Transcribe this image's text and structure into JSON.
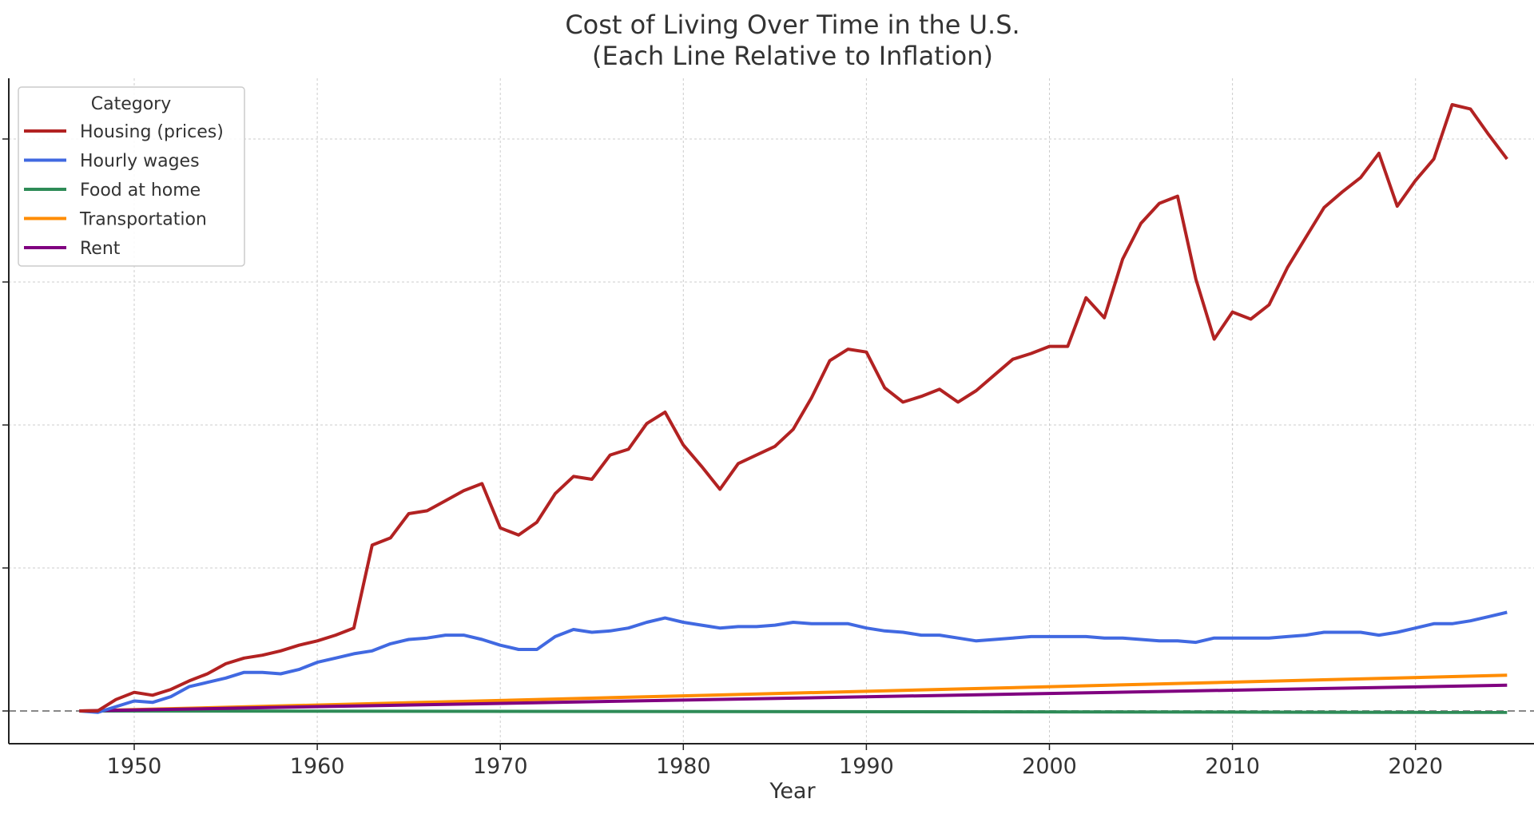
{
  "chart_data": {
    "type": "line",
    "title": "Cost of Living Over Time in the U.S.",
    "subtitle": "(Each Line Relative to Inflation)",
    "xlabel": "Year",
    "ylabel": "",
    "xlim": [
      1943,
      2026
    ],
    "ylim": [
      -0.23,
      4.35
    ],
    "xticks": [
      1950,
      1960,
      1970,
      1980,
      1990,
      2000,
      2010,
      2020
    ],
    "xtick_labels": [
      "1950",
      "1960",
      "1970",
      "1980",
      "1990",
      "2000",
      "2010",
      "2020"
    ],
    "yticks": [
      0,
      1,
      2,
      3,
      4
    ],
    "ytick_labels_visible": false,
    "grid": true,
    "baseline": 0,
    "legend": {
      "title": "Category",
      "placement": "top-left"
    },
    "series": [
      {
        "name": "Housing (prices)",
        "color": "#b22222",
        "x": [
          1947,
          1948,
          1949,
          1950,
          1951,
          1952,
          1953,
          1954,
          1955,
          1956,
          1957,
          1958,
          1959,
          1960,
          1961,
          1962,
          1963,
          1964,
          1965,
          1966,
          1967,
          1968,
          1969,
          1970,
          1971,
          1972,
          1973,
          1974,
          1975,
          1976,
          1977,
          1978,
          1979,
          1980,
          1981,
          1982,
          1983,
          1984,
          1985,
          1986,
          1987,
          1988,
          1989,
          1990,
          1991,
          1992,
          1993,
          1994,
          1995,
          1996,
          1997,
          1998,
          1999,
          2000,
          2001,
          2002,
          2003,
          2004,
          2005,
          2006,
          2007,
          2008,
          2009,
          2010,
          2011,
          2012,
          2013,
          2014,
          2015,
          2016,
          2017,
          2018,
          2019,
          2020,
          2021,
          2022,
          2023,
          2024,
          2025
        ],
        "y": [
          0,
          0,
          0.08,
          0.13,
          0.11,
          0.15,
          0.21,
          0.26,
          0.33,
          0.37,
          0.39,
          0.42,
          0.46,
          0.49,
          0.53,
          0.58,
          1.16,
          1.21,
          1.38,
          1.4,
          1.47,
          1.54,
          1.59,
          1.28,
          1.23,
          1.32,
          1.52,
          1.64,
          1.62,
          1.79,
          1.83,
          2.01,
          2.09,
          1.86,
          1.71,
          1.55,
          1.73,
          1.79,
          1.85,
          1.97,
          2.19,
          2.45,
          2.53,
          2.51,
          2.26,
          2.16,
          2.2,
          2.25,
          2.16,
          2.24,
          2.35,
          2.46,
          2.5,
          2.55,
          2.55,
          2.89,
          2.75,
          3.16,
          3.41,
          3.55,
          3.6,
          3.02,
          2.6,
          2.79,
          2.74,
          2.84,
          3.1,
          3.31,
          3.52,
          3.63,
          3.73,
          3.9,
          3.53,
          3.71,
          3.86,
          4.24,
          4.21,
          4.03,
          3.86
        ]
      },
      {
        "name": "Hourly wages",
        "color": "#4169e1",
        "x": [
          1947,
          1948,
          1949,
          1950,
          1951,
          1952,
          1953,
          1954,
          1955,
          1956,
          1957,
          1958,
          1959,
          1960,
          1961,
          1962,
          1963,
          1964,
          1965,
          1966,
          1967,
          1968,
          1969,
          1970,
          1971,
          1972,
          1973,
          1974,
          1975,
          1976,
          1977,
          1978,
          1979,
          1980,
          1981,
          1982,
          1983,
          1984,
          1985,
          1986,
          1987,
          1988,
          1989,
          1990,
          1991,
          1992,
          1993,
          1994,
          1995,
          1996,
          1997,
          1998,
          1999,
          2000,
          2001,
          2002,
          2003,
          2004,
          2005,
          2006,
          2007,
          2008,
          2009,
          2010,
          2011,
          2012,
          2013,
          2014,
          2015,
          2016,
          2017,
          2018,
          2019,
          2020,
          2021,
          2022,
          2023,
          2024,
          2025
        ],
        "y": [
          0,
          -0.01,
          0.03,
          0.07,
          0.06,
          0.1,
          0.17,
          0.2,
          0.23,
          0.27,
          0.27,
          0.26,
          0.29,
          0.34,
          0.37,
          0.4,
          0.42,
          0.47,
          0.5,
          0.51,
          0.53,
          0.53,
          0.5,
          0.46,
          0.43,
          0.43,
          0.52,
          0.57,
          0.55,
          0.56,
          0.58,
          0.62,
          0.65,
          0.62,
          0.6,
          0.58,
          0.59,
          0.59,
          0.6,
          0.62,
          0.61,
          0.61,
          0.61,
          0.58,
          0.56,
          0.55,
          0.53,
          0.53,
          0.51,
          0.49,
          0.5,
          0.51,
          0.52,
          0.52,
          0.52,
          0.52,
          0.51,
          0.51,
          0.5,
          0.49,
          0.49,
          0.48,
          0.51,
          0.51,
          0.51,
          0.51,
          0.52,
          0.53,
          0.55,
          0.55,
          0.55,
          0.53,
          0.55,
          0.58,
          0.61,
          0.61,
          0.63,
          0.66,
          0.69
        ]
      },
      {
        "name": "Food at home",
        "color": "#2e8b57",
        "x": [
          1947,
          2025
        ],
        "y": [
          0,
          -0.01
        ]
      },
      {
        "name": "Transportation",
        "color": "#ff8c00",
        "x": [
          1947,
          2025
        ],
        "y": [
          0,
          0.25
        ]
      },
      {
        "name": "Rent",
        "color": "#800080",
        "x": [
          1947,
          2025
        ],
        "y": [
          0,
          0.18
        ]
      }
    ]
  }
}
